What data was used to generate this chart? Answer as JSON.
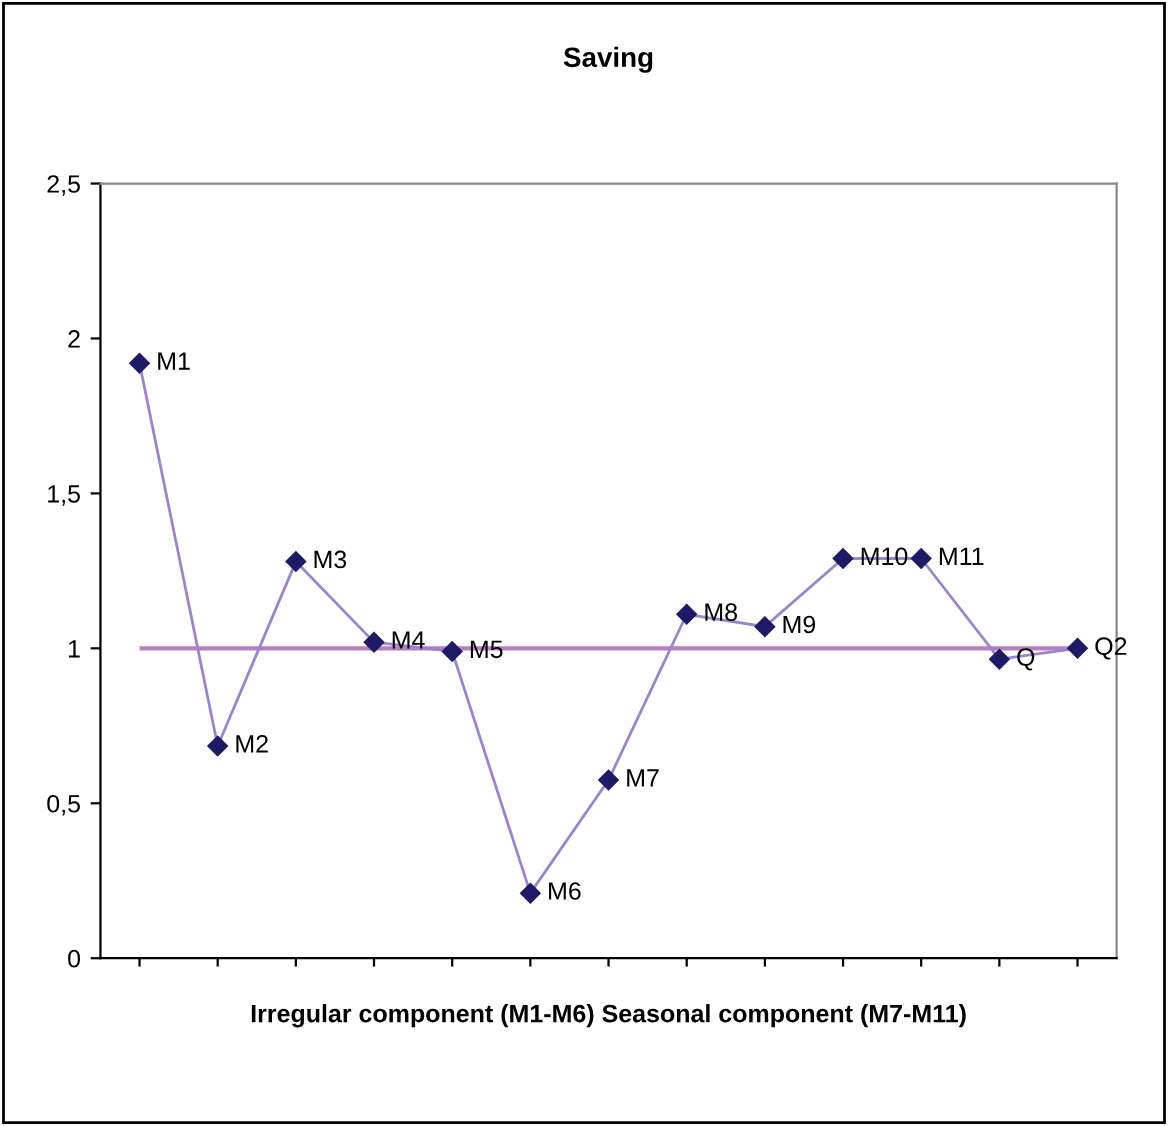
{
  "chart_data": {
    "type": "line",
    "title": "Saving",
    "xlabel": "Irregular component (M1-M6) Seasonal component (M7-M11)",
    "categories": [
      null,
      null,
      null,
      null,
      null,
      null,
      null,
      null,
      null,
      null,
      null,
      null,
      null
    ],
    "series": [
      {
        "color": "#9c84cc",
        "colors": [
          "#1f1a66",
          "#1f1a66",
          "#1f1a66",
          "#1f1a66",
          "#1f1a66",
          "#1f1a66",
          "#1f1a66",
          "#1f1a66",
          "#1f1a66",
          "#1f1a66",
          "#1f1a66",
          "#1f1a66",
          "#1f1a66"
        ],
        "values": [
          1.92,
          0.685,
          1.28,
          1.02,
          0.99,
          0.21,
          0.575,
          1.11,
          1.07,
          1.29,
          1.29,
          0.965,
          1.0
        ],
        "value_labels": [
          "M1",
          "M2",
          "M3",
          "M4",
          "M5",
          "M6",
          "M7",
          "M8",
          "M9",
          "M10",
          "M11",
          "Q",
          "Q2"
        ]
      }
    ],
    "ref_lines": [
      {
        "axis": "y",
        "value": 1,
        "color": "#b77fc0"
      }
    ],
    "ylim": [
      0,
      2.5
    ],
    "yticks": [
      0,
      {
        "value": 0.5,
        "label": "0,5"
      },
      1,
      {
        "value": 1.5,
        "label": "1,5"
      },
      2,
      {
        "value": 2.5,
        "label": "2,5"
      }
    ],
    "marker": "diamond",
    "line_style": "solid",
    "grid": false,
    "legend": false
  }
}
